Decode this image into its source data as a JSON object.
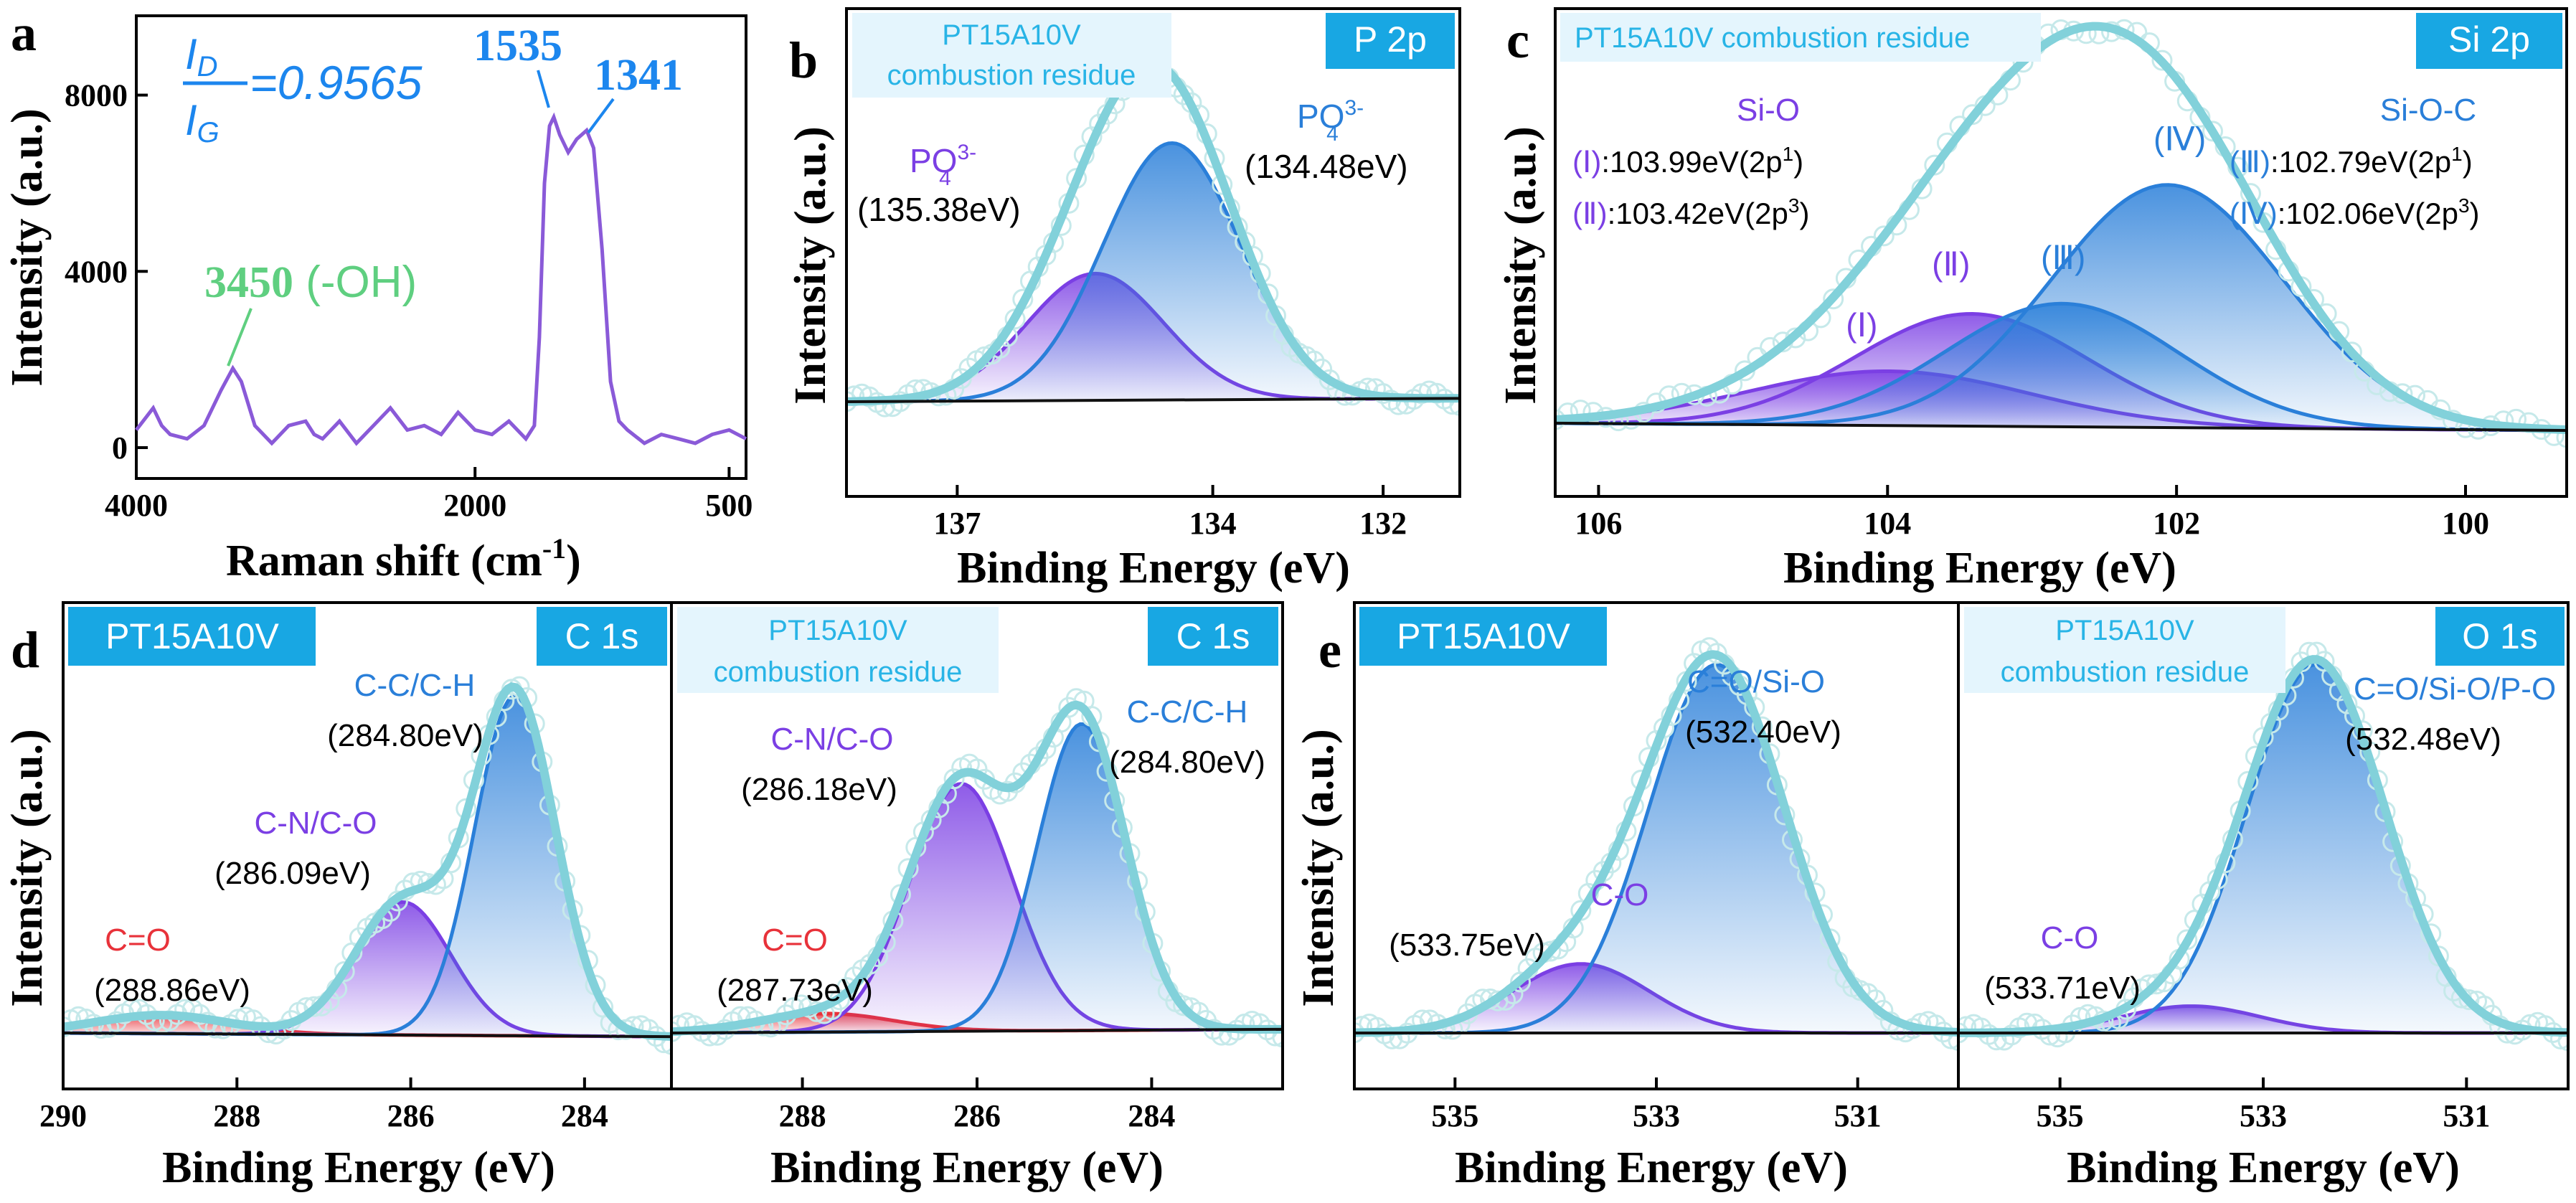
{
  "panels": [
    {
      "id": "a",
      "letter": "a",
      "type": "line",
      "xlabel": "Raman shift (cm",
      "xlabel_sup": "-1",
      "xlabel_close": ")",
      "ylabel": "Intensity (a.u.)",
      "xlim": [
        4000,
        400
      ],
      "ylim": [
        -700,
        9800
      ],
      "xticks": [
        4000,
        2000,
        500
      ],
      "xtick_labels": [
        "4000",
        "2000",
        "500"
      ],
      "yticks": [
        0,
        4000,
        8000
      ],
      "ytick_labels": [
        "0",
        "4000",
        "8000"
      ],
      "ratio_num": "I",
      "ratio_num_sub": "D",
      "ratio_den": "I",
      "ratio_den_sub": "G",
      "ratio_value": "=0.9565",
      "series": [
        {
          "x": [
            4000,
            3900,
            3850,
            3800,
            3700,
            3600,
            3500,
            3430,
            3380,
            3300,
            3200,
            3100,
            3000,
            2950,
            2900,
            2800,
            2700,
            2600,
            2500,
            2400,
            2300,
            2200,
            2100,
            2000,
            1900,
            1800,
            1700,
            1650,
            1620,
            1590,
            1560,
            1535,
            1500,
            1450,
            1400,
            1341,
            1300,
            1250,
            1200,
            1150,
            1100,
            1000,
            900,
            800,
            700,
            600,
            500,
            400
          ],
          "y": [
            400,
            900,
            500,
            300,
            200,
            500,
            1300,
            1800,
            1500,
            500,
            100,
            500,
            600,
            300,
            200,
            600,
            100,
            500,
            900,
            400,
            500,
            300,
            800,
            400,
            300,
            600,
            200,
            500,
            2500,
            6000,
            7300,
            7500,
            7100,
            6700,
            7000,
            7200,
            6800,
            4500,
            1500,
            600,
            400,
            100,
            300,
            200,
            100,
            300,
            400,
            200
          ],
          "color": "#8a5ad8"
        }
      ],
      "annotations": [
        {
          "label": "1535",
          "x": 1535,
          "y": 7500,
          "color": "#1c86ee"
        },
        {
          "label": "1341",
          "x": 1341,
          "y": 7200,
          "color": "#1c86ee"
        },
        {
          "label": "3450",
          "suffix": " (-OH)",
          "x": 3450,
          "y": 1800,
          "color": "#5fcf80"
        }
      ]
    },
    {
      "id": "b",
      "letter": "b",
      "type": "area",
      "xlabel": "Binding Energy (eV)",
      "ylabel": "Intensity (a.u.)",
      "xlim": [
        138.3,
        131.1
      ],
      "ylim": [
        -0.05,
        1.05
      ],
      "xticks": [
        137,
        134,
        132
      ],
      "xtick_labels": [
        "137",
        "134",
        "132"
      ],
      "header_box": {
        "lines": [
          "PT15A10V",
          "combustion residue"
        ]
      },
      "element_tag": "P 2p",
      "baseline": [
        0.0,
        0.01
      ],
      "peaks": [
        {
          "name": "PO",
          "sup": "3-",
          "sub": "4",
          "value_label": "(135.38eV)",
          "center": 135.38,
          "height": 0.38,
          "fwhm": 1.9,
          "color": "#7b3fe4"
        },
        {
          "name": "PO",
          "sup": "3-",
          "sub": "4",
          "value_label": "(134.48eV)",
          "center": 134.48,
          "height": 0.77,
          "fwhm": 1.9,
          "color": "#2a7fd9"
        }
      ]
    },
    {
      "id": "c",
      "letter": "c",
      "type": "area",
      "xlabel": "Binding Energy (eV)",
      "ylabel": "Intensity (a.u.)",
      "xlim": [
        106.3,
        99.3
      ],
      "ylim": [
        -0.05,
        1.05
      ],
      "xticks": [
        106,
        104,
        102,
        100
      ],
      "xtick_labels": [
        "106",
        "104",
        "102",
        "100"
      ],
      "header_box": {
        "lines": [
          "PT15A10V combustion residue"
        ]
      },
      "element_tag": "Si 2p",
      "baseline": [
        0.02,
        0.0
      ],
      "group_labels": [
        {
          "text": "Si-O",
          "color": "#7b3fe4"
        },
        {
          "text": "Si-O-C",
          "color": "#2a7fd9"
        }
      ],
      "legend_lines": [
        {
          "id": "(Ⅰ)",
          "text": ":103.99eV(2p",
          "sup": "1",
          "close": ")",
          "color": "#7b3fe4"
        },
        {
          "id": "(Ⅱ)",
          "text": ":103.42eV(2p",
          "sup": "3",
          "close": ")",
          "color": "#7b3fe4"
        },
        {
          "id": "(Ⅲ)",
          "text": ":102.79eV(2p",
          "sup": "1",
          "close": ")",
          "color": "#2a7fd9"
        },
        {
          "id": "(Ⅳ)",
          "text": ":102.06eV(2p",
          "sup": "3",
          "close": ")",
          "color": "#2a7fd9"
        }
      ],
      "peaks": [
        {
          "name": "(Ⅰ)",
          "center": 103.99,
          "height": 0.15,
          "fwhm": 2.3,
          "color": "#7b3fe4"
        },
        {
          "name": "(Ⅱ)",
          "center": 103.42,
          "height": 0.31,
          "fwhm": 1.9,
          "color": "#7b3fe4"
        },
        {
          "name": "(Ⅲ)",
          "center": 102.79,
          "height": 0.34,
          "fwhm": 1.9,
          "color": "#2a7fd9"
        },
        {
          "name": "(Ⅳ)",
          "center": 102.06,
          "height": 0.67,
          "fwhm": 1.9,
          "color": "#2a7fd9"
        }
      ]
    },
    {
      "id": "d1",
      "letter": "d",
      "type": "area",
      "xlabel": "Binding Energy (eV)",
      "ylabel": "Intensity (a.u.)",
      "xlim": [
        290.0,
        283.0
      ],
      "ylim": [
        -0.05,
        1.05
      ],
      "xticks": [
        290,
        288,
        286,
        284
      ],
      "xtick_labels": [
        "290",
        "288",
        "286",
        "284"
      ],
      "header_box": {
        "lines": [
          "PT15A10V"
        ],
        "solid": true
      },
      "element_tag": "C 1s",
      "baseline": [
        0.0,
        -0.01
      ],
      "peaks": [
        {
          "name": "C=O",
          "value_label": "(288.86eV)",
          "center": 288.86,
          "height": 0.05,
          "fwhm": 1.8,
          "color": "#e8323a"
        },
        {
          "name": "C-N/C-O",
          "value_label": "(286.09eV)",
          "center": 286.09,
          "height": 0.36,
          "fwhm": 1.3,
          "color": "#7b3fe4"
        },
        {
          "name": "C-C/C-H",
          "value_label": "(284.80eV)",
          "center": 284.8,
          "height": 0.92,
          "fwhm": 1.1,
          "color": "#2a7fd9"
        }
      ]
    },
    {
      "id": "d2",
      "letter": "",
      "type": "area",
      "xlabel": "Binding Energy (eV)",
      "ylabel": "",
      "xlim": [
        289.5,
        282.5
      ],
      "ylim": [
        -0.05,
        1.05
      ],
      "xticks": [
        288,
        286,
        284
      ],
      "xtick_labels": [
        "288",
        "286",
        "284"
      ],
      "header_box": {
        "lines": [
          "PT15A10V",
          "combustion residue"
        ]
      },
      "element_tag": "C 1s",
      "baseline": [
        0.0,
        0.01
      ],
      "peaks": [
        {
          "name": "C=O",
          "value_label": "(287.73eV)",
          "center": 287.73,
          "height": 0.05,
          "fwhm": 1.8,
          "color": "#e8323a"
        },
        {
          "name": "C-N/C-O",
          "value_label": "(286.18eV)",
          "center": 286.18,
          "height": 0.67,
          "fwhm": 1.4,
          "color": "#7b3fe4"
        },
        {
          "name": "C-C/C-H",
          "value_label": "(284.80eV)",
          "center": 284.8,
          "height": 0.83,
          "fwhm": 1.2,
          "color": "#2a7fd9"
        }
      ]
    },
    {
      "id": "e1",
      "letter": "e",
      "type": "area",
      "xlabel": "Binding Energy (eV)",
      "ylabel": "Intensity (a.u.)",
      "xlim": [
        536.0,
        530.0
      ],
      "ylim": [
        -0.05,
        1.05
      ],
      "xticks": [
        535,
        533,
        531
      ],
      "xtick_labels": [
        "535",
        "533",
        "531"
      ],
      "header_box": {
        "lines": [
          "PT15A10V"
        ],
        "solid": true
      },
      "element_tag": "O 1s",
      "baseline": [
        0.0,
        0.0
      ],
      "peaks": [
        {
          "name": "C-O",
          "value_label": "(533.75eV)",
          "center": 533.75,
          "height": 0.18,
          "fwhm": 1.6,
          "color": "#7b3fe4"
        },
        {
          "name": "C=O/Si-O",
          "value_label": "(532.40eV)",
          "center": 532.4,
          "height": 0.96,
          "fwhm": 1.6,
          "color": "#2a7fd9"
        }
      ]
    },
    {
      "id": "e2",
      "letter": "",
      "type": "area",
      "xlabel": "Binding Energy (eV)",
      "ylabel": "",
      "xlim": [
        536.0,
        530.0
      ],
      "ylim": [
        -0.05,
        1.05
      ],
      "xticks": [
        535,
        533,
        531
      ],
      "xtick_labels": [
        "535",
        "533",
        "531"
      ],
      "header_box": {
        "lines": [
          "PT15A10V",
          "combustion residue"
        ]
      },
      "element_tag": "O 1s",
      "baseline": [
        0.0,
        0.0
      ],
      "peaks": [
        {
          "name": "C-O",
          "value_label": "(533.71eV)",
          "center": 533.71,
          "height": 0.07,
          "fwhm": 1.6,
          "color": "#7b3fe4"
        },
        {
          "name": "C=O/Si-O/P-O",
          "value_label": "(532.48eV)",
          "center": 532.48,
          "height": 0.96,
          "fwhm": 1.6,
          "color": "#2a7fd9"
        }
      ]
    }
  ]
}
